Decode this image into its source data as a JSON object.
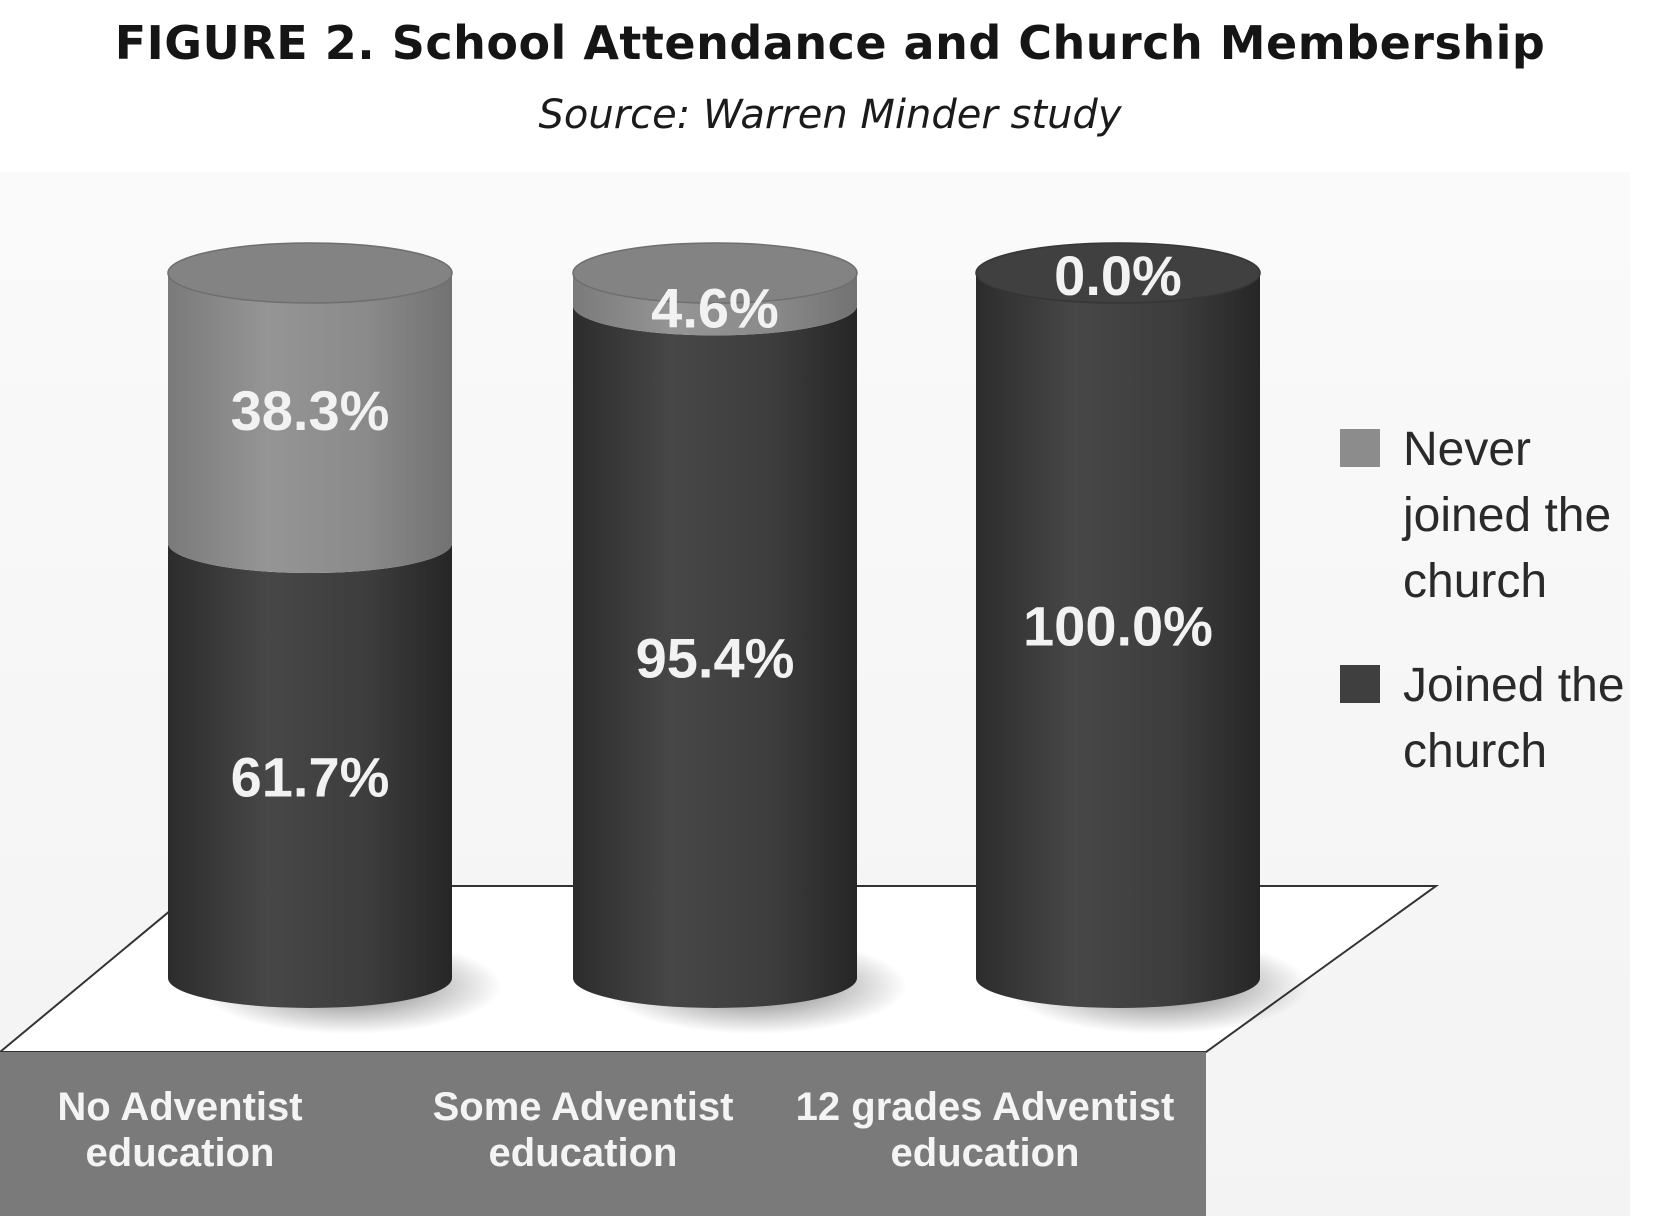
{
  "title": "FIGURE 2. School Attendance and Church Membership",
  "subtitle": "Source: Warren Minder study",
  "chart_data": {
    "type": "bar",
    "stacked": true,
    "style": "3d-cylinder",
    "categories": [
      [
        "No Adventist",
        "education"
      ],
      [
        "Some Adventist",
        "education"
      ],
      [
        "12 grades Adventist",
        "education"
      ]
    ],
    "series": [
      {
        "name": "Joined the church",
        "values": [
          61.7,
          95.4,
          100.0
        ],
        "labels": [
          "61.7%",
          "95.4%",
          "100.0%"
        ],
        "color": "#3f3f3f"
      },
      {
        "name": "Never joined the church",
        "values": [
          38.3,
          4.6,
          0.0
        ],
        "labels": [
          "38.3%",
          "4.6%",
          "0.0%"
        ],
        "color": "#8c8c8c"
      }
    ],
    "ylim": [
      0,
      100
    ],
    "legend": {
      "position": "right",
      "entries": [
        {
          "label_lines": [
            "Never",
            "joined the",
            "church"
          ],
          "color": "#8c8c8c"
        },
        {
          "label_lines": [
            "Joined the",
            "church"
          ],
          "color": "#3f3f3f"
        }
      ]
    },
    "grid": false
  }
}
